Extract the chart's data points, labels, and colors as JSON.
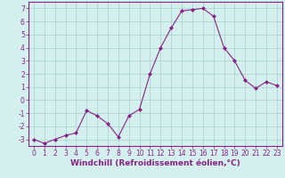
{
  "x": [
    0,
    1,
    2,
    3,
    4,
    5,
    6,
    7,
    8,
    9,
    10,
    11,
    12,
    13,
    14,
    15,
    16,
    17,
    18,
    19,
    20,
    21,
    22,
    23
  ],
  "y": [
    -3.0,
    -3.3,
    -3.0,
    -2.7,
    -2.5,
    -0.8,
    -1.2,
    -1.8,
    -2.8,
    -1.2,
    -0.7,
    2.0,
    4.0,
    5.5,
    6.8,
    6.9,
    7.0,
    6.4,
    4.0,
    3.0,
    1.5,
    0.9,
    1.4,
    1.1
  ],
  "xlim": [
    -0.5,
    23.5
  ],
  "ylim": [
    -3.5,
    7.5
  ],
  "yticks": [
    -3,
    -2,
    -1,
    0,
    1,
    2,
    3,
    4,
    5,
    6,
    7
  ],
  "xticks": [
    0,
    1,
    2,
    3,
    4,
    5,
    6,
    7,
    8,
    9,
    10,
    11,
    12,
    13,
    14,
    15,
    16,
    17,
    18,
    19,
    20,
    21,
    22,
    23
  ],
  "xlabel": "Windchill (Refroidissement éolien,°C)",
  "line_color": "#882288",
  "marker": "D",
  "marker_size": 2,
  "bg_color": "#d4f0ee",
  "grid_color": "#a8cfc8",
  "tick_label_fontsize": 5.5,
  "xlabel_fontsize": 6.5,
  "spine_color": "#882288"
}
